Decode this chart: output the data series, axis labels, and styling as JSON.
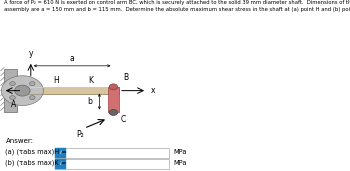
{
  "title_line1": "A force of P₂ = 610 N is exerted on control arm BC, which is securely attached to the solid 39 mm diameter shaft.  Dimensions of the",
  "title_line2": "assembly are a = 150 mm and b = 115 mm.  Determine the absolute maximum shear stress in the shaft at (a) point H and (b) point K.",
  "answer_label": "Answer:",
  "part_a_label": "(a) (τabs max)H =",
  "part_b_label": "(b) (τabs max)K =",
  "mpa_label": "MPa",
  "bg_color": "#ffffff",
  "text_color": "#000000",
  "box_color": "#1e7fc1",
  "input_border": "#aaaaaa",
  "fig_width": 3.5,
  "fig_height": 1.71,
  "dpi": 100
}
